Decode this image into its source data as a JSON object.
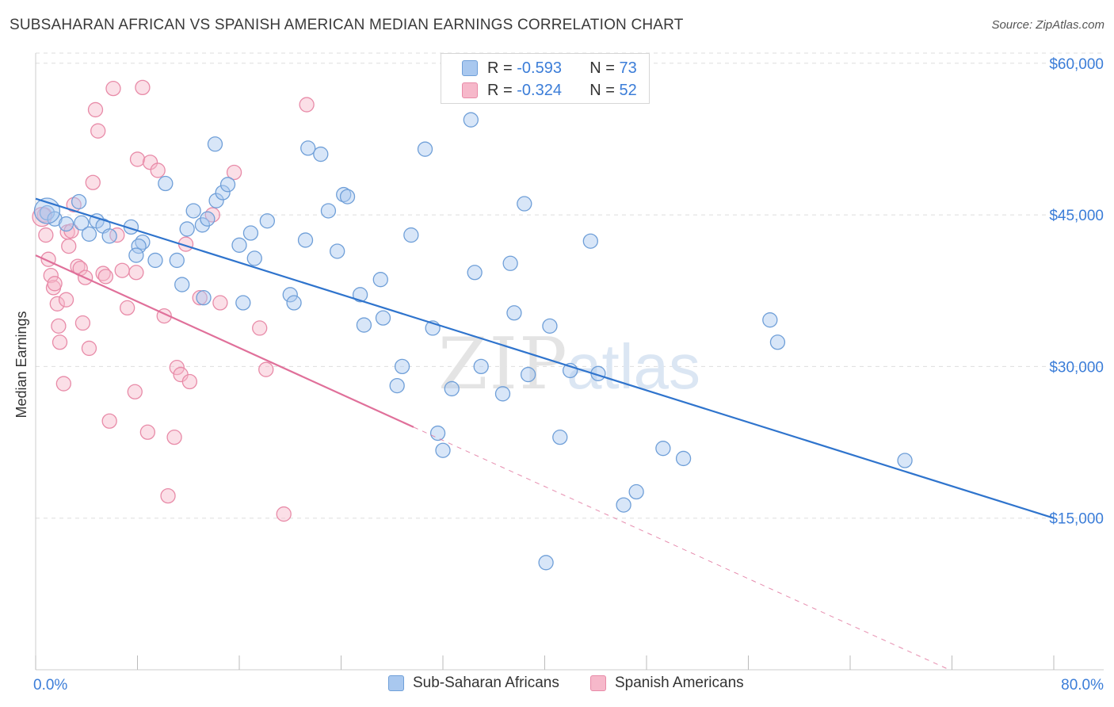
{
  "title": "SUBSAHARAN AFRICAN VS SPANISH AMERICAN MEDIAN EARNINGS CORRELATION CHART",
  "source": "Source: ZipAtlas.com",
  "watermark": {
    "zip": "ZIP",
    "atlas": "atlas"
  },
  "colors": {
    "blue_fill": "#a9c8ef",
    "blue_stroke": "#6f9fd8",
    "blue_line": "#2f74cd",
    "pink_fill": "#f6b8ca",
    "pink_stroke": "#e88ba8",
    "pink_line": "#e0709a",
    "axis_text": "#3b7dd8",
    "grid": "#dddddd"
  },
  "legend": {
    "r_label": "R =",
    "n_label": "N =",
    "series": [
      {
        "r": "-0.593",
        "n": "73"
      },
      {
        "r": "-0.324",
        "n": "52"
      }
    ]
  },
  "bottom_legend": [
    "Sub-Saharan Africans",
    "Spanish Americans"
  ],
  "chart_data": {
    "type": "scatter",
    "title": "SUBSAHARAN AFRICAN VS SPANISH AMERICAN MEDIAN EARNINGS CORRELATION CHART",
    "xlabel": "",
    "ylabel": "Median Earnings",
    "xlim": [
      0,
      80
    ],
    "ylim": [
      0,
      61000
    ],
    "x_tick_labels": [
      "0.0%",
      "80.0%"
    ],
    "y_ticks": [
      15000,
      30000,
      45000,
      60000
    ],
    "y_tick_labels": [
      "$15,000",
      "$30,000",
      "$45,000",
      "$60,000"
    ],
    "series": [
      {
        "name": "Sub-Saharan Africans",
        "r": -0.593,
        "n": 73,
        "trend": {
          "x": [
            0,
            80
          ],
          "y": [
            46600,
            15000
          ]
        },
        "points": [
          [
            0.9,
            45200
          ],
          [
            1.5,
            44600
          ],
          [
            2.4,
            44100
          ],
          [
            3.4,
            46300
          ],
          [
            3.6,
            44200
          ],
          [
            4.8,
            44400
          ],
          [
            5.3,
            43900
          ],
          [
            4.2,
            43100
          ],
          [
            5.8,
            42900
          ],
          [
            7.5,
            43800
          ],
          [
            8.4,
            42300
          ],
          [
            8.1,
            41900
          ],
          [
            7.9,
            41000
          ],
          [
            9.4,
            40500
          ],
          [
            11.1,
            40500
          ],
          [
            10.2,
            48100
          ],
          [
            11.9,
            43600
          ],
          [
            12.4,
            45400
          ],
          [
            13.1,
            44000
          ],
          [
            13.5,
            44600
          ],
          [
            14.2,
            46400
          ],
          [
            11.5,
            38100
          ],
          [
            13.2,
            36800
          ],
          [
            14.1,
            52000
          ],
          [
            14.7,
            47200
          ],
          [
            15.1,
            48000
          ],
          [
            16.0,
            42000
          ],
          [
            16.3,
            36300
          ],
          [
            16.9,
            43200
          ],
          [
            17.2,
            40700
          ],
          [
            18.2,
            44400
          ],
          [
            20.0,
            37100
          ],
          [
            20.3,
            36300
          ],
          [
            21.2,
            42500
          ],
          [
            21.4,
            51600
          ],
          [
            22.4,
            51000
          ],
          [
            23.0,
            45400
          ],
          [
            23.7,
            41400
          ],
          [
            24.2,
            47000
          ],
          [
            24.5,
            46800
          ],
          [
            25.5,
            37100
          ],
          [
            25.8,
            34100
          ],
          [
            27.1,
            38600
          ],
          [
            27.3,
            34800
          ],
          [
            28.4,
            28100
          ],
          [
            28.8,
            30000
          ],
          [
            29.5,
            43000
          ],
          [
            30.6,
            51500
          ],
          [
            31.2,
            33800
          ],
          [
            32.7,
            27800
          ],
          [
            34.2,
            54400
          ],
          [
            34.5,
            39300
          ],
          [
            31.6,
            23400
          ],
          [
            32.0,
            21700
          ],
          [
            35.0,
            30000
          ],
          [
            37.3,
            40200
          ],
          [
            36.7,
            27300
          ],
          [
            38.4,
            46100
          ],
          [
            37.6,
            35300
          ],
          [
            38.7,
            29200
          ],
          [
            40.1,
            10600
          ],
          [
            40.4,
            34000
          ],
          [
            41.2,
            23000
          ],
          [
            42.0,
            29600
          ],
          [
            43.6,
            42400
          ],
          [
            44.2,
            29300
          ],
          [
            46.2,
            16300
          ],
          [
            47.2,
            17600
          ],
          [
            49.3,
            21900
          ],
          [
            50.9,
            20900
          ],
          [
            57.7,
            34600
          ],
          [
            58.3,
            32400
          ],
          [
            68.3,
            20700
          ]
        ]
      },
      {
        "name": "Spanish Americans",
        "r": -0.324,
        "n": 52,
        "trend": {
          "x": [
            0,
            29.7
          ],
          "y": [
            41000,
            24000
          ]
        },
        "trend_dashed": {
          "x": [
            29.7,
            71.8
          ],
          "y": [
            24000,
            0
          ]
        },
        "points": [
          [
            0.7,
            45000
          ],
          [
            0.8,
            43000
          ],
          [
            1.0,
            40600
          ],
          [
            1.2,
            39000
          ],
          [
            1.4,
            37800
          ],
          [
            1.5,
            38200
          ],
          [
            1.7,
            36200
          ],
          [
            1.8,
            34000
          ],
          [
            1.9,
            32400
          ],
          [
            2.2,
            28300
          ],
          [
            2.4,
            36600
          ],
          [
            2.5,
            43300
          ],
          [
            2.6,
            41900
          ],
          [
            2.8,
            43400
          ],
          [
            3.0,
            46000
          ],
          [
            3.3,
            39900
          ],
          [
            3.5,
            39700
          ],
          [
            3.7,
            34300
          ],
          [
            3.9,
            38800
          ],
          [
            4.2,
            31800
          ],
          [
            4.5,
            48200
          ],
          [
            4.7,
            55400
          ],
          [
            4.9,
            53300
          ],
          [
            5.3,
            39200
          ],
          [
            5.5,
            38900
          ],
          [
            5.8,
            24600
          ],
          [
            6.1,
            57500
          ],
          [
            6.4,
            43000
          ],
          [
            6.8,
            39500
          ],
          [
            7.2,
            35800
          ],
          [
            7.8,
            27500
          ],
          [
            7.9,
            39300
          ],
          [
            8.0,
            50500
          ],
          [
            8.4,
            57600
          ],
          [
            8.8,
            23500
          ],
          [
            9.0,
            50200
          ],
          [
            9.6,
            49400
          ],
          [
            10.1,
            35000
          ],
          [
            10.4,
            17200
          ],
          [
            10.9,
            23000
          ],
          [
            11.1,
            29900
          ],
          [
            11.4,
            29200
          ],
          [
            11.8,
            42100
          ],
          [
            12.1,
            28500
          ],
          [
            12.9,
            36800
          ],
          [
            14.5,
            36300
          ],
          [
            15.6,
            49200
          ],
          [
            17.6,
            33800
          ],
          [
            18.1,
            29700
          ],
          [
            19.5,
            15400
          ],
          [
            21.3,
            55900
          ],
          [
            13.9,
            45000
          ]
        ]
      }
    ]
  }
}
